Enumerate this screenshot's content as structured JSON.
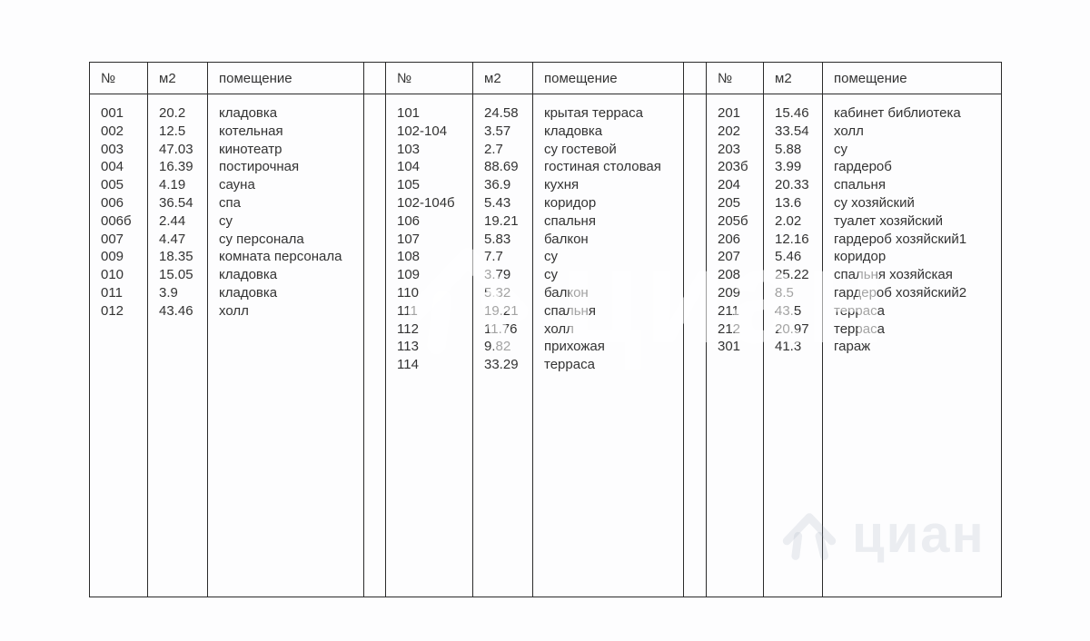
{
  "brand": {
    "watermark_text": "циан"
  },
  "columns": [
    "№",
    "м2",
    "помещение"
  ],
  "tables": [
    {
      "rows": [
        [
          "001",
          "20.2",
          "кладовка"
        ],
        [
          "002",
          "12.5",
          "котельная"
        ],
        [
          "003",
          "47.03",
          "кинотеатр"
        ],
        [
          "004",
          "16.39",
          "постирочная"
        ],
        [
          "005",
          "4.19",
          "сауна"
        ],
        [
          "006",
          "36.54",
          "спа"
        ],
        [
          "006б",
          "2.44",
          "су"
        ],
        [
          "007",
          "4.47",
          "су персонала"
        ],
        [
          "009",
          "18.35",
          "комната персонала"
        ],
        [
          "010",
          "15.05",
          "кладовка"
        ],
        [
          "011",
          "3.9",
          "кладовка"
        ],
        [
          "012",
          "43.46",
          "холл"
        ]
      ]
    },
    {
      "rows": [
        [
          "101",
          "24.58",
          "крытая терраса"
        ],
        [
          "102-104",
          "3.57",
          "кладовка"
        ],
        [
          "103",
          "2.7",
          "су гостевой"
        ],
        [
          "104",
          "88.69",
          "гостиная столовая"
        ],
        [
          "105",
          "36.9",
          "кухня"
        ],
        [
          "102-104б",
          "5.43",
          "коридор"
        ],
        [
          "106",
          "19.21",
          "спальня"
        ],
        [
          "107",
          "5.83",
          "балкон"
        ],
        [
          "108",
          "7.7",
          "су"
        ],
        [
          "109",
          "3.79",
          "су"
        ],
        [
          "110",
          "5.32",
          "балкон"
        ],
        [
          "111",
          "19.21",
          "спальня"
        ],
        [
          "112",
          "11.76",
          "холл"
        ],
        [
          "113",
          "9.82",
          "прихожая"
        ],
        [
          "114",
          "33.29",
          "терраса"
        ]
      ]
    },
    {
      "rows": [
        [
          "201",
          "15.46",
          "кабинет библиотека"
        ],
        [
          "202",
          "33.54",
          "холл"
        ],
        [
          "203",
          "5.88",
          "су"
        ],
        [
          "203б",
          "3.99",
          "гардероб"
        ],
        [
          "204",
          "20.33",
          "спальня"
        ],
        [
          "205",
          "13.6",
          "су хозяйский"
        ],
        [
          "205б",
          "2.02",
          "туалет хозяйский"
        ],
        [
          "206",
          "12.16",
          "гардероб хозяйский1"
        ],
        [
          "207",
          "5.46",
          "коридор"
        ],
        [
          "208",
          "25.22",
          "спальня хозяйская"
        ],
        [
          "209",
          "8.5",
          "гардероб хозяйский2"
        ],
        [
          "211",
          "43.5",
          "терраса"
        ],
        [
          "212",
          "20.97",
          "терраса"
        ],
        [
          "301",
          "41.3",
          "гараж"
        ]
      ]
    }
  ],
  "colors": {
    "text": "#333333",
    "border": "#2b2b2b",
    "page_bg": "#fdfdfe",
    "watermark_center": "rgba(255,255,255,0.55)",
    "watermark_corner": "rgba(146,154,176,0.16)"
  }
}
